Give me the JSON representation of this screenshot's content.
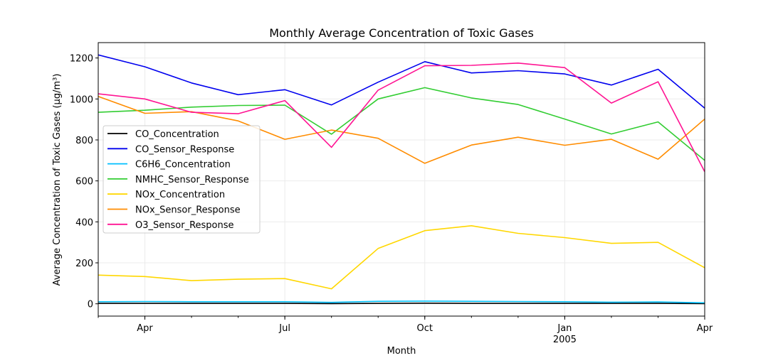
{
  "chart_data": {
    "type": "line",
    "title": "Monthly Average Concentration of Toxic Gases",
    "xlabel": "Month",
    "ylabel": "Average Concentration of Toxic Gases (µg/m³)",
    "x": [
      "2004-03",
      "2004-04",
      "2004-05",
      "2004-06",
      "2004-07",
      "2004-08",
      "2004-09",
      "2004-10",
      "2004-11",
      "2004-12",
      "2005-01",
      "2005-02",
      "2005-03",
      "2005-04"
    ],
    "xlim": [
      "2004-03",
      "2005-04"
    ],
    "ylim": [
      -60,
      1275
    ],
    "y_ticks": [
      0,
      200,
      400,
      600,
      800,
      1000,
      1200
    ],
    "x_ticks": [
      {
        "at": "2004-04",
        "label": "Apr",
        "sublabel": ""
      },
      {
        "at": "2004-07",
        "label": "Jul",
        "sublabel": ""
      },
      {
        "at": "2004-10",
        "label": "Oct",
        "sublabel": ""
      },
      {
        "at": "2005-01",
        "label": "Jan",
        "sublabel": "2005"
      },
      {
        "at": "2005-04",
        "label": "Apr",
        "sublabel": ""
      }
    ],
    "grid": true,
    "legend_position": "center-left",
    "series": [
      {
        "name": "CO_Concentration",
        "color": "#000000",
        "values": [
          2,
          2,
          2,
          2,
          2,
          1,
          2,
          3,
          2,
          2,
          2,
          2,
          2,
          1
        ]
      },
      {
        "name": "CO_Sensor_Response",
        "color": "#0000ee",
        "values": [
          1215,
          1157,
          1078,
          1021,
          1045,
          971,
          1082,
          1182,
          1127,
          1138,
          1122,
          1068,
          1145,
          955
        ]
      },
      {
        "name": "C6H6_Concentration",
        "color": "#00bfff",
        "values": [
          10,
          11,
          10,
          10,
          10,
          7,
          12,
          13,
          12,
          11,
          10,
          8,
          9,
          5
        ]
      },
      {
        "name": "NMHC_Sensor_Response",
        "color": "#32cd32",
        "values": [
          935,
          945,
          960,
          968,
          970,
          828,
          1000,
          1055,
          1005,
          973,
          902,
          829,
          888,
          700
        ]
      },
      {
        "name": "NOx_Concentration",
        "color": "#ffd700",
        "values": [
          140,
          133,
          113,
          120,
          123,
          73,
          270,
          357,
          381,
          344,
          323,
          295,
          300,
          176
        ]
      },
      {
        "name": "NOx_Sensor_Response",
        "color": "#ff8c00",
        "values": [
          1012,
          930,
          938,
          893,
          803,
          848,
          808,
          686,
          775,
          813,
          774,
          803,
          706,
          902
        ]
      },
      {
        "name": "O3_Sensor_Response",
        "color": "#ff1493",
        "values": [
          1025,
          1000,
          935,
          928,
          992,
          764,
          1043,
          1162,
          1164,
          1175,
          1153,
          980,
          1084,
          645
        ]
      }
    ]
  }
}
